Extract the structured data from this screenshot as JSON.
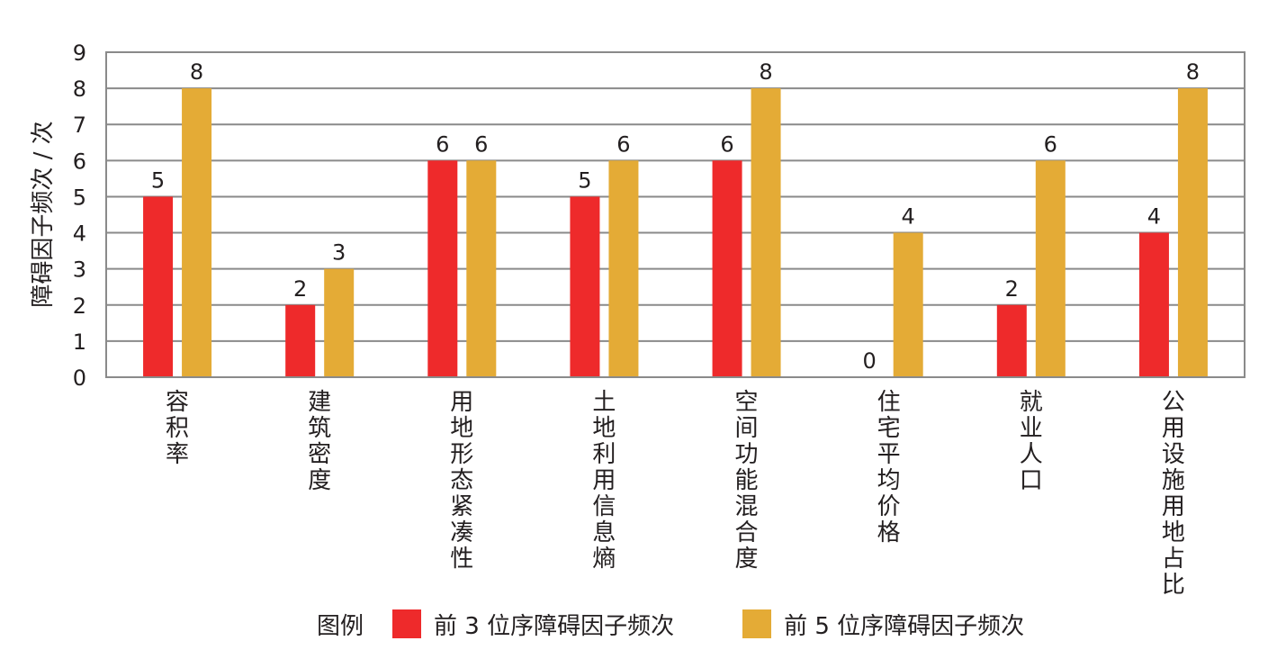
{
  "chart_data": {
    "type": "bar",
    "categories": [
      "容积率",
      "建筑密度",
      "用地形态紧凑性",
      "土地利用信息熵",
      "空间功能混合度",
      "住宅平均价格",
      "就业人口",
      "公用设施用地占比"
    ],
    "series": [
      {
        "name": "前 3 位序障碍因子频次",
        "color": "#ee2a2b",
        "values": [
          5,
          2,
          6,
          5,
          6,
          0,
          2,
          4
        ]
      },
      {
        "name": "前 5 位序障碍因子频次",
        "color": "#e4ab36",
        "values": [
          8,
          3,
          6,
          6,
          8,
          4,
          6,
          8
        ]
      }
    ],
    "ylabel": "障碍因子频次 / 次",
    "xlabel": "",
    "ylim": [
      0,
      9
    ],
    "yticks": [
      "0",
      "1",
      "2",
      "3",
      "4",
      "5",
      "6",
      "7",
      "8",
      "9"
    ],
    "grid": true,
    "legend_title": "图例",
    "legend_position": "bottom"
  }
}
